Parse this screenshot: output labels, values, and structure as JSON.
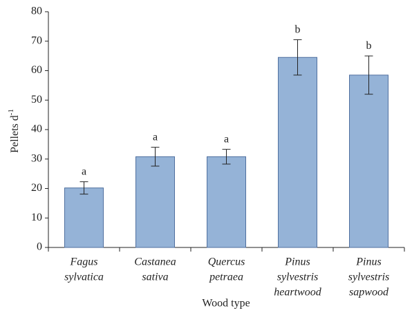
{
  "chart_data": {
    "type": "bar",
    "x_label": "Wood type",
    "y_label": {
      "text": "Pellets d",
      "superscript": "-1"
    },
    "categories": [
      [
        "Fagus",
        "sylvatica"
      ],
      [
        "Castanea",
        "sativa"
      ],
      [
        "Quercus",
        "petraea"
      ],
      [
        "Pinus",
        "sylvestris",
        "heartwood"
      ],
      [
        "Pinus",
        "sylvestris",
        "sapwood"
      ]
    ],
    "values": [
      20.2,
      30.8,
      30.8,
      64.5,
      58.5
    ],
    "errors": [
      2.1,
      3.2,
      2.5,
      6,
      6.5
    ],
    "annotations": [
      "a",
      "a",
      "a",
      "b",
      "b"
    ],
    "color": "#95b3d7",
    "edge_color": "#4f6f9f",
    "ylim": [
      0,
      80
    ],
    "yticks": [
      0,
      10,
      20,
      30,
      40,
      50,
      60,
      70,
      80
    ],
    "grid": false
  }
}
